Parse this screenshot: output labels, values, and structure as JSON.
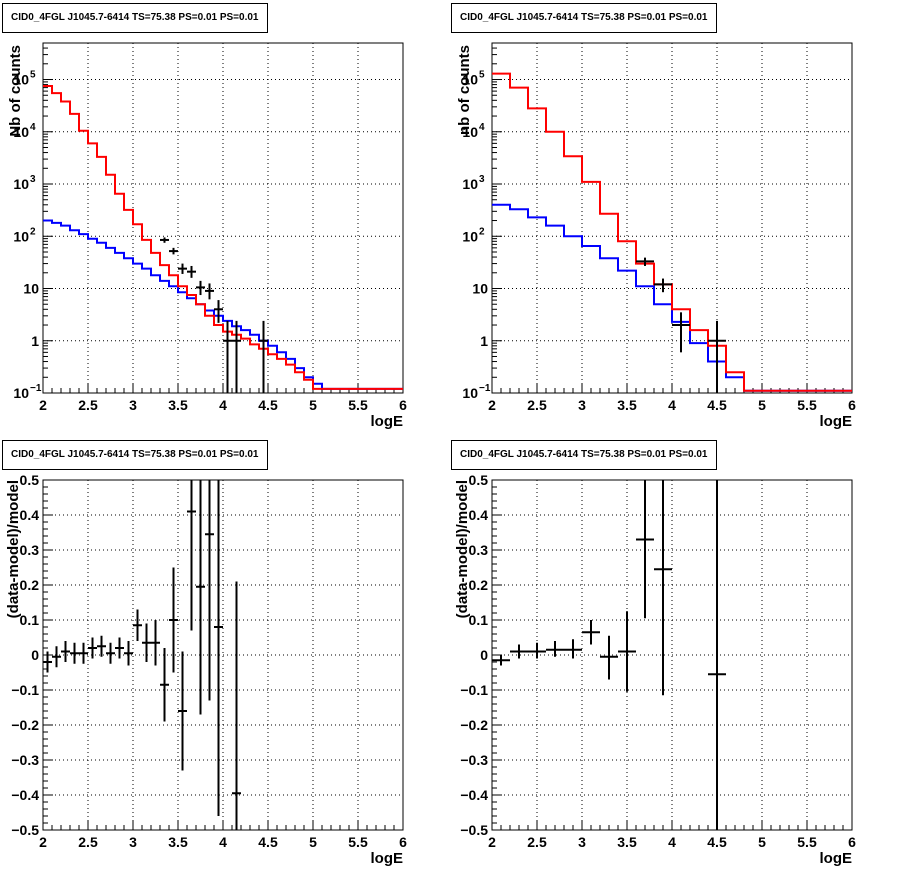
{
  "panels": [
    {
      "title": "CID0_4FGL J1045.7-6414 TS=75.38 PS=0.01 PS=0.01",
      "chart_data": {
        "type": "line",
        "log_y": true,
        "xlim": [
          2,
          6
        ],
        "ylim": [
          0.1,
          500000
        ],
        "xlabel": "logE",
        "ylabel": "Nb of counts",
        "x_ticks": [
          "2",
          "2.5",
          "3",
          "3.5",
          "4",
          "4.5",
          "5",
          "5.5",
          "6"
        ],
        "y_ticks": [
          {
            "v": 0.1,
            "t": "10",
            "sup": "−1"
          },
          {
            "v": 1,
            "t": "1"
          },
          {
            "v": 10,
            "t": "10"
          },
          {
            "v": 100,
            "t": "10",
            "sup": "2"
          },
          {
            "v": 1000,
            "t": "10",
            "sup": "3"
          },
          {
            "v": 10000,
            "t": "10",
            "sup": "4"
          },
          {
            "v": 100000,
            "t": "10",
            "sup": "5"
          }
        ],
        "grid": true,
        "series": [
          {
            "color": "#0000ff",
            "step": true,
            "bin_edges_start": 2,
            "bin_width": 0.1,
            "values": [
              200,
              180,
              160,
              130,
              110,
              90,
              75,
              60,
              48,
              38,
              30,
              24,
              18,
              14,
              11,
              8.5,
              6.5,
              5,
              3.8,
              3,
              2.4,
              1.9,
              1.6,
              1.3,
              1.0,
              0.8,
              0.6,
              0.45,
              0.3,
              0.2,
              0.15,
              0.12,
              0.12,
              0.12,
              0.12,
              0.12,
              0.12,
              0.12,
              0.12,
              0.12
            ]
          },
          {
            "color": "#ff0000",
            "step": true,
            "bin_edges_start": 2,
            "bin_width": 0.1,
            "values": [
              75000,
              55000,
              38000,
              22000,
              10500,
              6000,
              3300,
              1500,
              650,
              320,
              170,
              85,
              48,
              28,
              18,
              11,
              7.5,
              5,
              3,
              2,
              1.5,
              1.3,
              1.1,
              0.85,
              0.7,
              0.55,
              0.45,
              0.35,
              0.25,
              0.18,
              0.12,
              0.12,
              0.12,
              0.12,
              0.12,
              0.12,
              0.12,
              0.12,
              0.12,
              0.12
            ]
          }
        ],
        "points": [
          {
            "x": 3.35,
            "y": 85,
            "xerr": 0.05,
            "ylo": 75,
            "yhi": 95
          },
          {
            "x": 3.45,
            "y": 52,
            "xerr": 0.05,
            "ylo": 45,
            "yhi": 60
          },
          {
            "x": 3.55,
            "y": 24,
            "xerr": 0.05,
            "ylo": 19,
            "yhi": 30
          },
          {
            "x": 3.65,
            "y": 21,
            "xerr": 0.05,
            "ylo": 16,
            "yhi": 27
          },
          {
            "x": 3.75,
            "y": 10.5,
            "xerr": 0.05,
            "ylo": 7.5,
            "yhi": 14
          },
          {
            "x": 3.85,
            "y": 9,
            "xerr": 0.05,
            "ylo": 6.2,
            "yhi": 12.5
          },
          {
            "x": 3.95,
            "y": 4,
            "xerr": 0.05,
            "ylo": 2.2,
            "yhi": 6
          },
          {
            "x": 4.05,
            "y": 1,
            "xerr": 0.05,
            "ylo": 0.1,
            "yhi": 2.4
          },
          {
            "x": 4.15,
            "y": 1,
            "xerr": 0.05,
            "ylo": 0.1,
            "yhi": 2.4
          },
          {
            "x": 4.45,
            "y": 1,
            "xerr": 0.05,
            "ylo": 0.1,
            "yhi": 2.4
          }
        ]
      }
    },
    {
      "title": "CID0_4FGL J1045.7-6414 TS=75.38 PS=0.01 PS=0.01",
      "chart_data": {
        "type": "line",
        "log_y": true,
        "xlim": [
          2,
          6
        ],
        "ylim": [
          0.1,
          500000
        ],
        "xlabel": "logE",
        "ylabel": "nb of counts",
        "x_ticks": [
          "2",
          "2.5",
          "3",
          "3.5",
          "4",
          "4.5",
          "5",
          "5.5",
          "6"
        ],
        "y_ticks": [
          {
            "v": 0.1,
            "t": "10",
            "sup": "−1"
          },
          {
            "v": 1,
            "t": "1"
          },
          {
            "v": 10,
            "t": "10"
          },
          {
            "v": 100,
            "t": "10",
            "sup": "2"
          },
          {
            "v": 1000,
            "t": "10",
            "sup": "3"
          },
          {
            "v": 10000,
            "t": "10",
            "sup": "4"
          },
          {
            "v": 100000,
            "t": "10",
            "sup": "5"
          }
        ],
        "grid": true,
        "series": [
          {
            "color": "#0000ff",
            "step": true,
            "bin_edges_start": 2,
            "bin_width": 0.2,
            "values": [
              400,
              330,
              230,
              160,
              100,
              65,
              38,
              22,
              11,
              5,
              2.3,
              0.9,
              0.4,
              0.2,
              0.11,
              0.11,
              0.11,
              0.11,
              0.11,
              0.11
            ]
          },
          {
            "color": "#ff0000",
            "step": true,
            "bin_edges_start": 2,
            "bin_width": 0.2,
            "values": [
              130000,
              70000,
              28000,
              10000,
              3400,
              1100,
              270,
              80,
              30,
              12,
              4,
              1.6,
              0.8,
              0.25,
              0.11,
              0.11,
              0.11,
              0.11,
              0.11,
              0.11
            ]
          }
        ],
        "points": [
          {
            "x": 3.7,
            "y": 33,
            "xerr": 0.1,
            "ylo": 27,
            "yhi": 39
          },
          {
            "x": 3.9,
            "y": 12,
            "xerr": 0.1,
            "ylo": 8.5,
            "yhi": 15.5
          },
          {
            "x": 4.1,
            "y": 2,
            "xerr": 0.1,
            "ylo": 0.6,
            "yhi": 3.5
          },
          {
            "x": 4.5,
            "y": 1,
            "xerr": 0.1,
            "ylo": 0.1,
            "yhi": 2.4
          }
        ]
      }
    },
    {
      "title": "CID0_4FGL J1045.7-6414 TS=75.38 PS=0.01 PS=0.01",
      "chart_data": {
        "type": "scatter",
        "log_y": false,
        "xlim": [
          2,
          6
        ],
        "ylim": [
          -0.5,
          0.5
        ],
        "xlabel": "logE",
        "ylabel": "(data-model)/model",
        "x_ticks": [
          "2",
          "2.5",
          "3",
          "3.5",
          "4",
          "4.5",
          "5",
          "5.5",
          "6"
        ],
        "y_ticks": [
          {
            "v": -0.5,
            "t": "−0.5"
          },
          {
            "v": -0.4,
            "t": "−0.4"
          },
          {
            "v": -0.3,
            "t": "−0.3"
          },
          {
            "v": -0.2,
            "t": "−0.2"
          },
          {
            "v": -0.1,
            "t": "−0.1"
          },
          {
            "v": 0,
            "t": "0"
          },
          {
            "v": 0.1,
            "t": "0.1"
          },
          {
            "v": 0.2,
            "t": "0.2"
          },
          {
            "v": 0.3,
            "t": "0.3"
          },
          {
            "v": 0.4,
            "t": "0.4"
          },
          {
            "v": 0.5,
            "t": "0.5"
          }
        ],
        "grid": true,
        "series": [],
        "points": [
          {
            "x": 2.05,
            "y": -0.02,
            "xerr": 0.05,
            "ylo": -0.05,
            "yhi": 0.01
          },
          {
            "x": 2.15,
            "y": -0.005,
            "xerr": 0.05,
            "ylo": -0.035,
            "yhi": 0.025
          },
          {
            "x": 2.25,
            "y": 0.01,
            "xerr": 0.05,
            "ylo": -0.02,
            "yhi": 0.04
          },
          {
            "x": 2.35,
            "y": 0.005,
            "xerr": 0.05,
            "ylo": -0.025,
            "yhi": 0.035
          },
          {
            "x": 2.45,
            "y": 0.005,
            "xerr": 0.05,
            "ylo": -0.025,
            "yhi": 0.035
          },
          {
            "x": 2.55,
            "y": 0.02,
            "xerr": 0.05,
            "ylo": -0.01,
            "yhi": 0.05
          },
          {
            "x": 2.65,
            "y": 0.025,
            "xerr": 0.05,
            "ylo": -0.005,
            "yhi": 0.055
          },
          {
            "x": 2.75,
            "y": 0.005,
            "xerr": 0.05,
            "ylo": -0.025,
            "yhi": 0.035
          },
          {
            "x": 2.85,
            "y": 0.02,
            "xerr": 0.05,
            "ylo": -0.01,
            "yhi": 0.05
          },
          {
            "x": 2.95,
            "y": 0.005,
            "xerr": 0.05,
            "ylo": -0.03,
            "yhi": 0.04
          },
          {
            "x": 3.05,
            "y": 0.085,
            "xerr": 0.05,
            "ylo": 0.04,
            "yhi": 0.13
          },
          {
            "x": 3.15,
            "y": 0.035,
            "xerr": 0.05,
            "ylo": -0.02,
            "yhi": 0.09
          },
          {
            "x": 3.25,
            "y": 0.035,
            "xerr": 0.05,
            "ylo": -0.03,
            "yhi": 0.1
          },
          {
            "x": 3.35,
            "y": -0.085,
            "xerr": 0.05,
            "ylo": -0.19,
            "yhi": 0.02
          },
          {
            "x": 3.45,
            "y": 0.1,
            "xerr": 0.05,
            "ylo": -0.05,
            "yhi": 0.25
          },
          {
            "x": 3.55,
            "y": -0.16,
            "xerr": 0.05,
            "ylo": -0.33,
            "yhi": 0.01
          },
          {
            "x": 3.65,
            "y": 0.41,
            "xerr": 0.05,
            "ylo": 0.07,
            "yhi": 0.75
          },
          {
            "x": 3.75,
            "y": 0.195,
            "xerr": 0.05,
            "ylo": -0.17,
            "yhi": 0.56
          },
          {
            "x": 3.85,
            "y": 0.345,
            "xerr": 0.05,
            "ylo": -0.13,
            "yhi": 0.82
          },
          {
            "x": 3.95,
            "y": 0.08,
            "xerr": 0.05,
            "ylo": -0.46,
            "yhi": 0.62
          },
          {
            "x": 4.15,
            "y": -0.395,
            "xerr": 0.05,
            "ylo": -1.0,
            "yhi": 0.21
          }
        ]
      }
    },
    {
      "title": "CID0_4FGL J1045.7-6414 TS=75.38 PS=0.01 PS=0.01",
      "chart_data": {
        "type": "scatter",
        "log_y": false,
        "xlim": [
          2,
          6
        ],
        "ylim": [
          -0.5,
          0.5
        ],
        "xlabel": "logE",
        "ylabel": "(data-model)/model",
        "x_ticks": [
          "2",
          "2.5",
          "3",
          "3.5",
          "4",
          "4.5",
          "5",
          "5.5",
          "6"
        ],
        "y_ticks": [
          {
            "v": -0.5,
            "t": "−0.5"
          },
          {
            "v": -0.4,
            "t": "−0.4"
          },
          {
            "v": -0.3,
            "t": "−0.3"
          },
          {
            "v": -0.2,
            "t": "−0.2"
          },
          {
            "v": -0.1,
            "t": "−0.1"
          },
          {
            "v": 0,
            "t": "0"
          },
          {
            "v": 0.1,
            "t": "0.1"
          },
          {
            "v": 0.2,
            "t": "0.2"
          },
          {
            "v": 0.3,
            "t": "0.3"
          },
          {
            "v": 0.4,
            "t": "0.4"
          },
          {
            "v": 0.5,
            "t": "0.5"
          }
        ],
        "grid": true,
        "series": [],
        "points": [
          {
            "x": 2.1,
            "y": -0.015,
            "xerr": 0.1,
            "ylo": -0.03,
            "yhi": 0.0
          },
          {
            "x": 2.3,
            "y": 0.01,
            "xerr": 0.1,
            "ylo": -0.01,
            "yhi": 0.03
          },
          {
            "x": 2.5,
            "y": 0.01,
            "xerr": 0.1,
            "ylo": -0.01,
            "yhi": 0.035
          },
          {
            "x": 2.7,
            "y": 0.015,
            "xerr": 0.1,
            "ylo": -0.005,
            "yhi": 0.04
          },
          {
            "x": 2.9,
            "y": 0.015,
            "xerr": 0.1,
            "ylo": -0.01,
            "yhi": 0.045
          },
          {
            "x": 3.1,
            "y": 0.065,
            "xerr": 0.1,
            "ylo": 0.03,
            "yhi": 0.1
          },
          {
            "x": 3.3,
            "y": -0.005,
            "xerr": 0.1,
            "ylo": -0.07,
            "yhi": 0.055
          },
          {
            "x": 3.5,
            "y": 0.01,
            "xerr": 0.1,
            "ylo": -0.105,
            "yhi": 0.125
          },
          {
            "x": 3.7,
            "y": 0.33,
            "xerr": 0.1,
            "ylo": 0.105,
            "yhi": 0.56
          },
          {
            "x": 3.9,
            "y": 0.245,
            "xerr": 0.1,
            "ylo": -0.115,
            "yhi": 0.61
          },
          {
            "x": 4.5,
            "y": -0.055,
            "xerr": 0.1,
            "ylo": -1.0,
            "yhi": 0.9
          }
        ]
      }
    }
  ]
}
